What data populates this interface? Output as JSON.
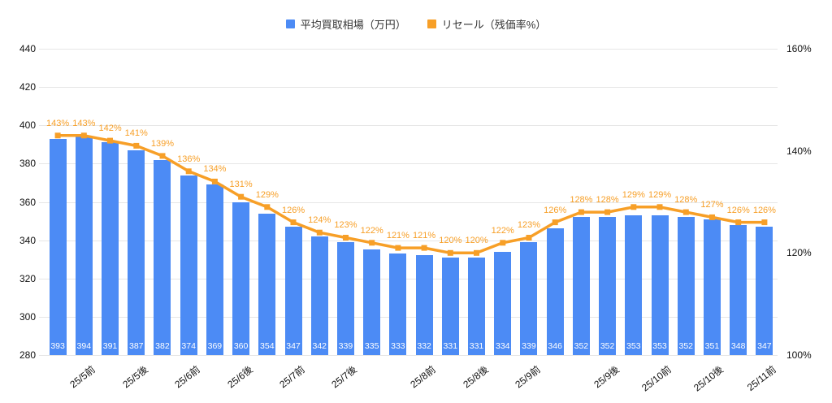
{
  "chart_data": {
    "type": "bar",
    "combo_types": [
      "bar",
      "line"
    ],
    "title": "",
    "legend_position": "top",
    "grid": true,
    "background": "#FFFFFF",
    "grid_color": "#E6E6E6",
    "axis_text_color": "#111111",
    "series": [
      {
        "name": "平均買取相場（万円）",
        "type": "bar",
        "axis": "left",
        "color": "#4C8BF5",
        "values": [
          393,
          394,
          391,
          387,
          382,
          374,
          369,
          360,
          354,
          347,
          342,
          339,
          335,
          333,
          332,
          331,
          331,
          334,
          339,
          346,
          352,
          352,
          353,
          353,
          352,
          351,
          348,
          347
        ]
      },
      {
        "name": "リセール（残価率%）",
        "type": "line",
        "axis": "right",
        "color": "#F79F27",
        "label_suffix": "%",
        "values": [
          143,
          143,
          142,
          141,
          139,
          136,
          134,
          131,
          129,
          126,
          124,
          123,
          122,
          121,
          121,
          120,
          120,
          122,
          123,
          126,
          128,
          128,
          129,
          129,
          128,
          127,
          126,
          126
        ]
      }
    ],
    "x_axis": {
      "tick_labels": [
        {
          "label": "25/5前",
          "bar_index": 1
        },
        {
          "label": "25/5後",
          "bar_index": 3
        },
        {
          "label": "25/6前",
          "bar_index": 5
        },
        {
          "label": "25/6後",
          "bar_index": 7
        },
        {
          "label": "25/7前",
          "bar_index": 9
        },
        {
          "label": "25/7後",
          "bar_index": 11
        },
        {
          "label": "25/8前",
          "bar_index": 14
        },
        {
          "label": "25/8後",
          "bar_index": 16
        },
        {
          "label": "25/9前",
          "bar_index": 18
        },
        {
          "label": "25/9後",
          "bar_index": 21
        },
        {
          "label": "25/10前",
          "bar_index": 23
        },
        {
          "label": "25/10後",
          "bar_index": 25
        },
        {
          "label": "25/11前",
          "bar_index": 27
        }
      ]
    },
    "left_axis": {
      "min": 280,
      "max": 440,
      "ticks": [
        440,
        420,
        400,
        380,
        360,
        340,
        320,
        300,
        280
      ]
    },
    "right_axis": {
      "min": 100,
      "max": 160,
      "ticks": [
        {
          "label": "160%",
          "value": 160
        },
        {
          "label": "140%",
          "value": 140
        },
        {
          "label": "120%",
          "value": 120
        },
        {
          "label": "100%",
          "value": 100
        }
      ]
    }
  }
}
